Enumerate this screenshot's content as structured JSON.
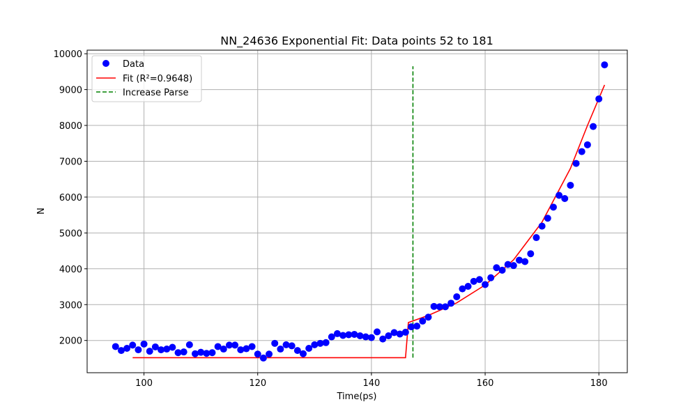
{
  "chart_data": {
    "type": "scatter",
    "title": "NN_24636 Exponential Fit: Data points 52 to 181",
    "xlabel": "Time(ps)",
    "ylabel": "N",
    "xlim": [
      90,
      185
    ],
    "ylim": [
      1100,
      10100
    ],
    "xticks": [
      100,
      120,
      140,
      160,
      180
    ],
    "yticks": [
      2000,
      3000,
      4000,
      5000,
      6000,
      7000,
      8000,
      9000,
      10000
    ],
    "grid": true,
    "legend_position": "top-left",
    "colors": {
      "data": "#0000ff",
      "fit": "#ff0000",
      "parse": "#008000",
      "grid": "#b0b0b0"
    },
    "series": [
      {
        "name": "Data",
        "kind": "scatter",
        "x": [
          95,
          96,
          97,
          98,
          99,
          100,
          101,
          102,
          103,
          104,
          105,
          106,
          107,
          108,
          109,
          110,
          111,
          112,
          113,
          114,
          115,
          116,
          117,
          118,
          119,
          120,
          121,
          122,
          123,
          124,
          125,
          126,
          127,
          128,
          129,
          130,
          131,
          132,
          133,
          134,
          135,
          136,
          137,
          138,
          139,
          140,
          141,
          142,
          143,
          144,
          145,
          146,
          147,
          148,
          149,
          150,
          151,
          152,
          153,
          154,
          155,
          156,
          157,
          158,
          159,
          160,
          161,
          162,
          163,
          164,
          165,
          166,
          167,
          168,
          169,
          170,
          171,
          172,
          173,
          174,
          175,
          176,
          177,
          178,
          179,
          180,
          181
        ],
        "y": [
          1830,
          1720,
          1780,
          1870,
          1740,
          1900,
          1700,
          1820,
          1740,
          1760,
          1810,
          1660,
          1680,
          1880,
          1630,
          1670,
          1640,
          1660,
          1830,
          1760,
          1870,
          1870,
          1740,
          1770,
          1830,
          1620,
          1510,
          1620,
          1920,
          1760,
          1880,
          1850,
          1720,
          1630,
          1780,
          1880,
          1920,
          1940,
          2100,
          2190,
          2140,
          2160,
          2170,
          2130,
          2100,
          2080,
          2240,
          2040,
          2130,
          2220,
          2180,
          2230,
          2380,
          2400,
          2540,
          2650,
          2950,
          2940,
          2940,
          3040,
          3220,
          3440,
          3510,
          3650,
          3700,
          3560,
          3750,
          4030,
          3960,
          4120,
          4090,
          4240,
          4200,
          4420,
          4870,
          5190,
          5410,
          5720,
          6050,
          5960,
          6330,
          6940,
          7270,
          7460,
          7970,
          8740,
          9690
        ]
      },
      {
        "name": "Fit (R²=0.9648)",
        "kind": "line",
        "x": [
          98,
          146,
          146.5,
          150,
          155,
          160,
          165,
          170,
          175,
          178,
          181
        ],
        "y": [
          1520,
          1520,
          2500,
          2700,
          3050,
          3550,
          4250,
          5300,
          6800,
          8000,
          9130
        ]
      },
      {
        "name": "Increase Parse",
        "kind": "vline",
        "x": 147.3,
        "y_range": [
          1520,
          9650
        ]
      }
    ]
  }
}
